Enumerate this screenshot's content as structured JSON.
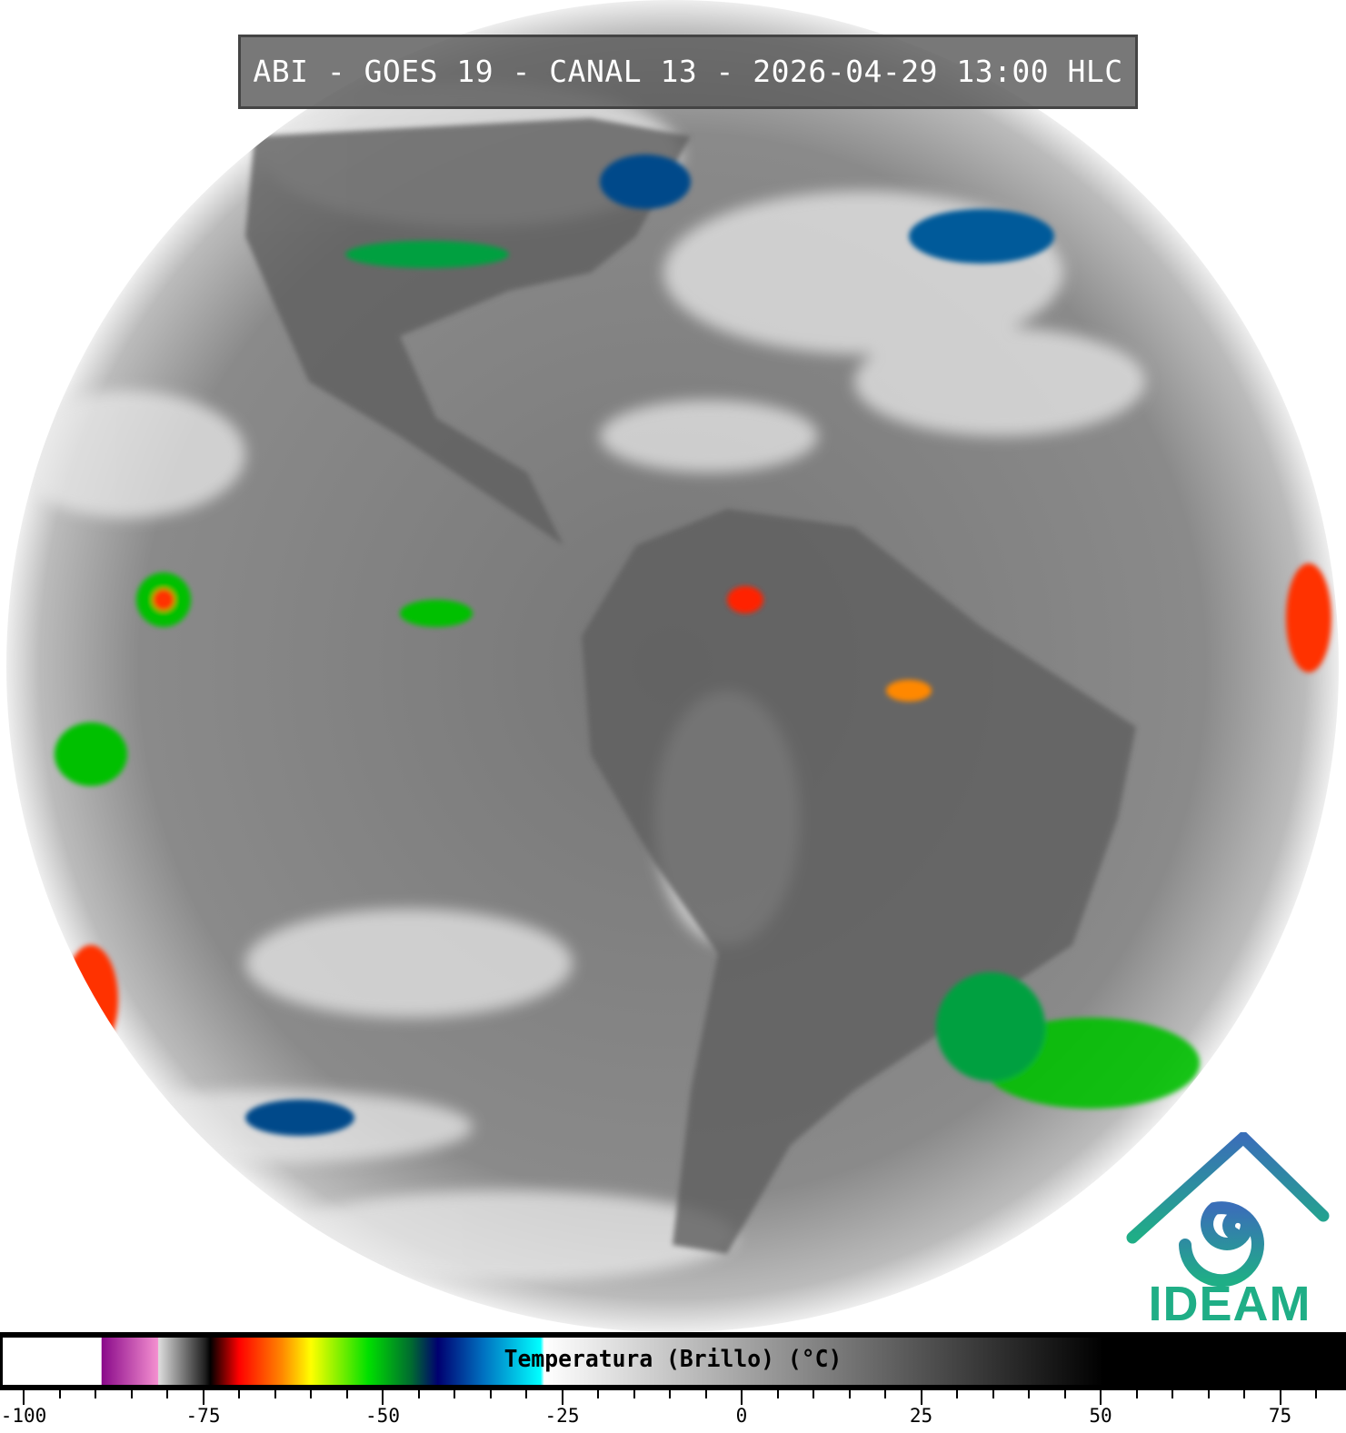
{
  "title": "ABI - GOES 19 - CANAL 13 - 2026-04-29 13:00 HLC",
  "colorbar": {
    "label": "Temperatura (Brillo) (°C)",
    "range": [
      -101,
      83
    ],
    "major_ticks": [
      -100,
      -75,
      -50,
      -25,
      0,
      25,
      50,
      75
    ],
    "tick_labels": [
      "-100",
      "-75",
      "-50",
      "-25",
      "0",
      "25",
      "50",
      "75"
    ],
    "minor_step": 5,
    "colormap": [
      {
        "t": -101,
        "color": "#ffffff"
      },
      {
        "t": -89.2,
        "color": "#ffffff"
      },
      {
        "t": -89.1,
        "color": "#8a0a8a"
      },
      {
        "t": -81.3,
        "color": "#f48fd0"
      },
      {
        "t": -81.2,
        "color": "#dddddd"
      },
      {
        "t": -74.8,
        "color": "#222222"
      },
      {
        "t": -74.0,
        "color": "#000000"
      },
      {
        "t": -70,
        "color": "#ff0000"
      },
      {
        "t": -64,
        "color": "#ff8800"
      },
      {
        "t": -60,
        "color": "#ffff00"
      },
      {
        "t": -52,
        "color": "#00e000"
      },
      {
        "t": -46,
        "color": "#006a30"
      },
      {
        "t": -42.3,
        "color": "#000070"
      },
      {
        "t": -36,
        "color": "#0070c0"
      },
      {
        "t": -28,
        "color": "#00ffff"
      },
      {
        "t": -27.5,
        "color": "#ffffff"
      },
      {
        "t": 50.4,
        "color": "#000000"
      },
      {
        "t": 83,
        "color": "#000000"
      }
    ]
  },
  "logo": {
    "text": "IDEAM",
    "colors": [
      "#3a6fb8",
      "#1fae86"
    ]
  },
  "image": {
    "satellite": "GOES 19",
    "channel": 13,
    "projection": "full disk"
  }
}
